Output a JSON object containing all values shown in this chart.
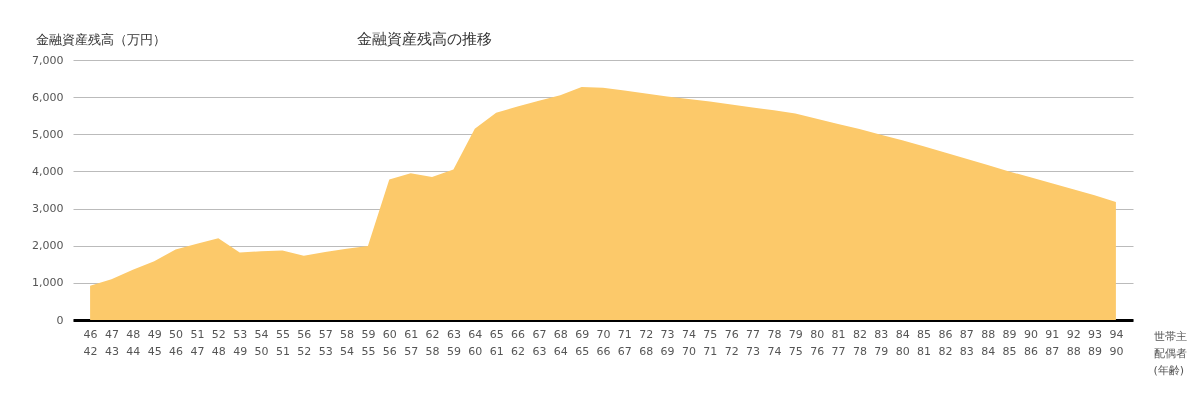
{
  "chart_data": {
    "type": "area",
    "title": "金融資産残高の推移",
    "ylabel": "金融資産残高（万円）",
    "xlabel": "世帯主配偶者(年齢)",
    "categories": [
      "46\n42",
      "47\n43",
      "48\n44",
      "49\n45",
      "50\n46",
      "51\n47",
      "52\n48",
      "53\n49",
      "54\n50",
      "55\n51",
      "56\n52",
      "57\n53",
      "58\n54",
      "59\n55",
      "60\n56",
      "61\n57",
      "62\n58",
      "63\n59",
      "64\n60",
      "65\n61",
      "66\n62",
      "67\n63",
      "68\n64",
      "69\n65",
      "70\n66",
      "71\n67",
      "72\n68",
      "73\n69",
      "74\n70",
      "75\n71",
      "76\n72",
      "77\n73",
      "78\n74",
      "79\n75",
      "80\n76",
      "81\n77",
      "82\n78",
      "83\n79",
      "84\n80",
      "85\n81",
      "86\n82",
      "87\n83",
      "88\n84",
      "89\n85",
      "90\n86",
      "91\n87",
      "92\n88",
      "93\n89",
      "94\n90"
    ],
    "series": [
      {
        "color": "#fcc96a",
        "values": [
          920,
          1100,
          1350,
          1580,
          1900,
          2050,
          2200,
          1820,
          1850,
          1870,
          1730,
          1830,
          1920,
          1990,
          3780,
          3950,
          3850,
          4050,
          5150,
          5580,
          5750,
          5900,
          6050,
          6270,
          6250,
          6180,
          6100,
          6020,
          5950,
          5880,
          5800,
          5720,
          5650,
          5560,
          5420,
          5280,
          5140,
          4990,
          4840,
          4680,
          4510,
          4340,
          4170,
          4000,
          3840,
          3680,
          3520,
          3360,
          3180
        ]
      }
    ],
    "ylim": [
      0,
      7000
    ],
    "yticks": [
      {
        "value": 0,
        "label": "0"
      },
      {
        "value": 1000,
        "label": "1,000"
      },
      {
        "value": 2000,
        "label": "2,000"
      },
      {
        "value": 3000,
        "label": "3,000"
      },
      {
        "value": 4000,
        "label": "4,000"
      },
      {
        "value": 5000,
        "label": "5,000"
      },
      {
        "value": 6000,
        "label": "6,000"
      },
      {
        "value": 7000,
        "label": "7,000"
      }
    ],
    "grid": "y"
  }
}
